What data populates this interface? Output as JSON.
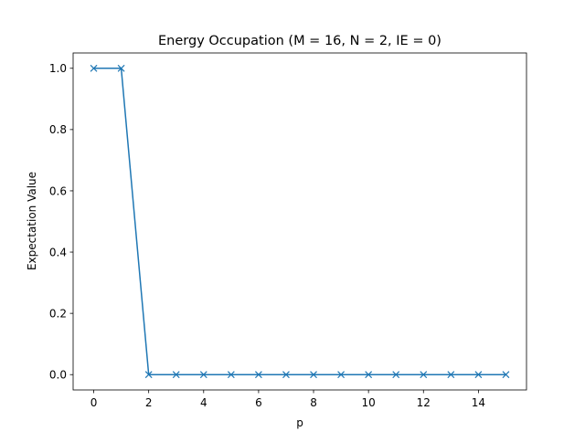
{
  "chart_data": {
    "type": "line",
    "title": "Energy Occupation (M = 16, N = 2, IE = 0)",
    "xlabel": "p",
    "ylabel": "Expectation Value",
    "xlim": [
      -0.75,
      15.75
    ],
    "ylim": [
      -0.05,
      1.05
    ],
    "xticks": [
      0,
      2,
      4,
      6,
      8,
      10,
      12,
      14
    ],
    "yticks": [
      0.0,
      0.2,
      0.4,
      0.6,
      0.8,
      1.0
    ],
    "xtick_labels": [
      "0",
      "2",
      "4",
      "6",
      "8",
      "10",
      "12",
      "14"
    ],
    "ytick_labels": [
      "0.0",
      "0.2",
      "0.4",
      "0.6",
      "0.8",
      "1.0"
    ],
    "grid": false,
    "series": [
      {
        "marker": "x",
        "color": "#1f77b4",
        "x": [
          0,
          1,
          2,
          3,
          4,
          5,
          6,
          7,
          8,
          9,
          10,
          11,
          12,
          13,
          14,
          15
        ],
        "y": [
          1.0,
          1.0,
          0.0,
          0.0,
          0.0,
          0.0,
          0.0,
          0.0,
          0.0,
          0.0,
          0.0,
          0.0,
          0.0,
          0.0,
          0.0,
          0.0
        ]
      }
    ]
  }
}
